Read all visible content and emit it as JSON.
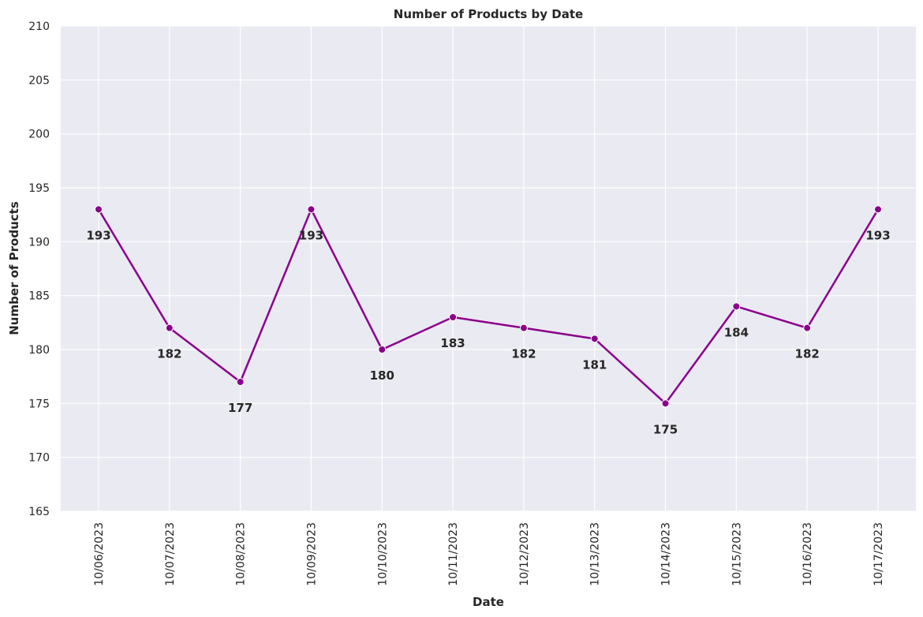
{
  "chart_data": {
    "type": "line",
    "title": "Number of Products by Date",
    "xlabel": "Date",
    "ylabel": "Number of Products",
    "categories": [
      "10/06/2023",
      "10/07/2023",
      "10/08/2023",
      "10/09/2023",
      "10/10/2023",
      "10/11/2023",
      "10/12/2023",
      "10/13/2023",
      "10/14/2023",
      "10/15/2023",
      "10/16/2023",
      "10/17/2023"
    ],
    "values": [
      193,
      182,
      177,
      193,
      180,
      183,
      182,
      181,
      175,
      184,
      182,
      193
    ],
    "ylim": [
      165,
      210
    ],
    "yticks": [
      165,
      170,
      175,
      180,
      185,
      190,
      195,
      200,
      205,
      210
    ],
    "grid": true,
    "line_color": "#8b008b",
    "background_color": "#eaeaf2",
    "grid_color": "#ffffff"
  }
}
